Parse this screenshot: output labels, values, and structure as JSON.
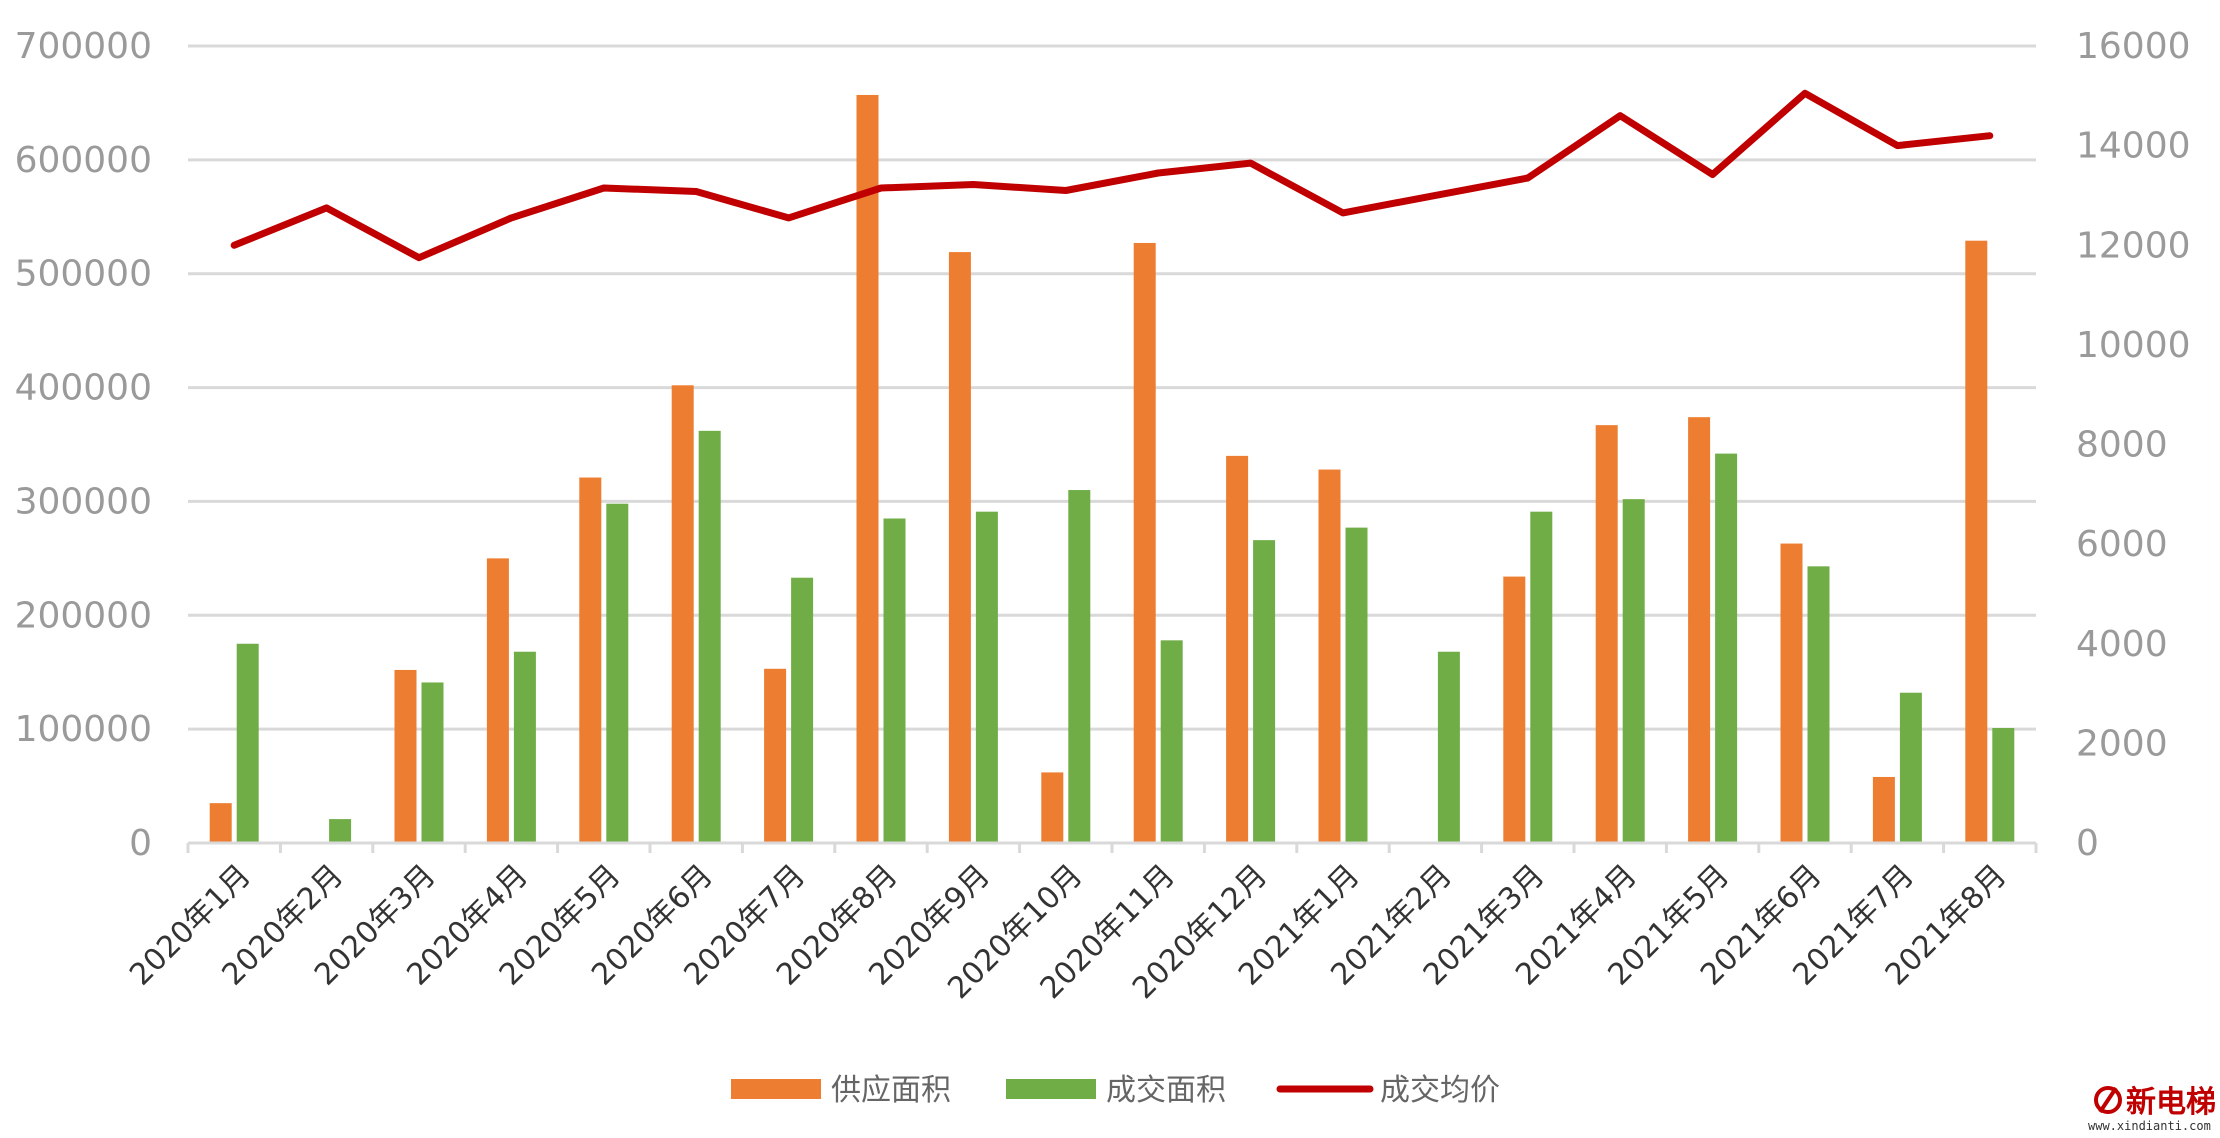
{
  "chart_data": {
    "type": "bar",
    "categories": [
      "2020年1月",
      "2020年2月",
      "2020年3月",
      "2020年4月",
      "2020年5月",
      "2020年6月",
      "2020年7月",
      "2020年8月",
      "2020年9月",
      "2020年10月",
      "2020年11月",
      "2020年12月",
      "2021年1月",
      "2021年2月",
      "2021年3月",
      "2021年4月",
      "2021年5月",
      "2021年6月",
      "2021年7月",
      "2021年8月"
    ],
    "series": [
      {
        "name": "供应面积",
        "type": "bar",
        "axis": "left",
        "color": "#ED7D31",
        "values": [
          35000,
          0,
          152000,
          250000,
          321000,
          402000,
          153000,
          657000,
          519000,
          62000,
          527000,
          340000,
          328000,
          0,
          234000,
          367000,
          374000,
          263000,
          58000,
          529000
        ]
      },
      {
        "name": "成交面积",
        "type": "bar",
        "axis": "left",
        "color": "#70AD47",
        "values": [
          175000,
          21000,
          141000,
          168000,
          298000,
          362000,
          233000,
          285000,
          291000,
          310000,
          178000,
          266000,
          277000,
          168000,
          291000,
          302000,
          342000,
          243000,
          132000,
          101000
        ]
      },
      {
        "name": "成交均价",
        "type": "line",
        "axis": "right",
        "color": "#C00000",
        "values": [
          12000,
          12750,
          11750,
          12550,
          13150,
          13080,
          12550,
          13150,
          13220,
          13100,
          13450,
          13650,
          12650,
          13000,
          13350,
          14600,
          13420,
          15050,
          14000,
          14200
        ]
      }
    ],
    "y_left": {
      "min": 0,
      "max": 700000,
      "ticks": [
        "0",
        "100000",
        "200000",
        "300000",
        "400000",
        "500000",
        "600000",
        "700000"
      ]
    },
    "y_right": {
      "min": 0,
      "max": 16000,
      "ticks": [
        "0",
        "2000",
        "4000",
        "6000",
        "8000",
        "10000",
        "12000",
        "14000",
        "16000"
      ]
    },
    "grid": true,
    "legend_position": "bottom-center"
  },
  "watermark": {
    "text": "新电梯",
    "url": "www.xindianti.com"
  }
}
